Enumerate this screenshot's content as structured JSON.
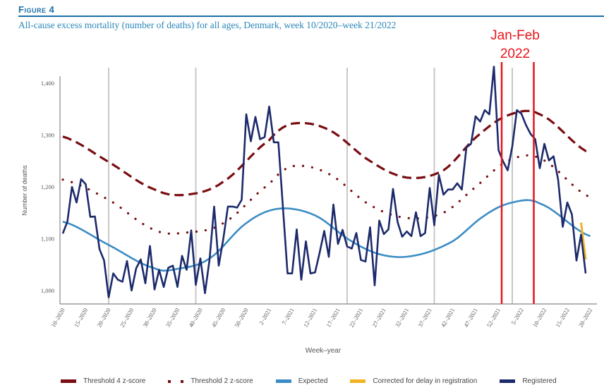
{
  "figure": {
    "label": "Figure 4",
    "title": "All-cause excess mortality (number of deaths) for all ages, Denmark, week 10/2020–week 21/2022",
    "annotation": {
      "line1": "Jan-Feb",
      "line2": "2022",
      "color": "#e8141b",
      "x_start_week_index": 96,
      "x_end_week_index": 103
    }
  },
  "colors": {
    "threshold4": "#7a0d12",
    "threshold2": "#7a0d12",
    "expected": "#3b8cc4",
    "corrected": "#f0b323",
    "registered": "#1c2a6b",
    "year_lines": "#c8c8c8",
    "title": "#2a86b8",
    "label": "#1b6fa8"
  },
  "chart_data": {
    "type": "line",
    "title": "All-cause excess mortality (number of deaths) for all ages, Denmark, week 10/2020–week 21/2022",
    "xlabel": "Week–year",
    "ylabel": "Number of deaths",
    "ylim": [
      975,
      1420
    ],
    "yticks": [
      1000,
      1100,
      1200,
      1300,
      1400
    ],
    "ytick_labels": [
      "1,000",
      "1,100",
      "1,200",
      "1,300",
      "1,400"
    ],
    "x_tick_labels": [
      "10–2020",
      "15–2020",
      "20–2020",
      "25–2020",
      "30–2020",
      "35–2020",
      "40–2020",
      "45–2020",
      "50–2020",
      "2–2021",
      "7–2021",
      "12–2021",
      "17–2021",
      "22–2021",
      "27–2021",
      "32–2021",
      "37–2021",
      "42–2021",
      "47–2021",
      "52–2021",
      "5–2022",
      "10–2022",
      "15–2022",
      "20–2022"
    ],
    "x_tick_step_weeks": 5,
    "n_weeks": 116,
    "year_separator_week_indices": [
      10,
      29,
      62,
      81,
      98
    ],
    "grid": false,
    "legend_position": "bottom",
    "series": [
      {
        "name": "Threshold 4 z-score",
        "style": "dashed",
        "control_weeks": [
          0,
          10,
          20,
          27,
          35,
          45,
          50,
          58,
          67,
          75,
          83,
          90,
          97,
          104,
          115
        ],
        "values": [
          1297,
          1248,
          1195,
          1185,
          1210,
          1290,
          1322,
          1310,
          1250,
          1218,
          1232,
          1295,
          1338,
          1340,
          1265
        ]
      },
      {
        "name": "Threshold 2 z-score",
        "style": "dotted",
        "control_weeks": [
          0,
          10,
          20,
          27,
          35,
          45,
          50,
          58,
          67,
          75,
          83,
          90,
          97,
          104,
          115
        ],
        "values": [
          1214,
          1175,
          1117,
          1112,
          1130,
          1205,
          1240,
          1225,
          1165,
          1140,
          1150,
          1200,
          1250,
          1255,
          1180
        ]
      },
      {
        "name": "Expected",
        "style": "solid",
        "control_weeks": [
          0,
          10,
          20,
          25,
          32,
          40,
          47,
          55,
          63,
          70,
          77,
          85,
          92,
          98,
          104,
          115
        ],
        "values": [
          1133,
          1088,
          1043,
          1042,
          1062,
          1130,
          1158,
          1145,
          1095,
          1068,
          1068,
          1095,
          1145,
          1170,
          1168,
          1105
        ]
      },
      {
        "name": "Corrected for delay in registration",
        "style": "solid",
        "start_week_index": 113,
        "values": [
          1131,
          1060
        ]
      },
      {
        "name": "Registered",
        "style": "solid",
        "values": [
          1110,
          1133,
          1200,
          1170,
          1215,
          1205,
          1142,
          1143,
          1080,
          1058,
          987,
          1033,
          1021,
          1017,
          1057,
          1000,
          1043,
          1060,
          1014,
          1086,
          1002,
          1040,
          1007,
          1044,
          1048,
          1007,
          1067,
          1040,
          1116,
          1011,
          1062,
          995,
          1060,
          1162,
          1048,
          1100,
          1162,
          1162,
          1160,
          1175,
          1340,
          1288,
          1335,
          1292,
          1296,
          1355,
          1286,
          1286,
          1160,
          1033,
          1033,
          1118,
          1021,
          1095,
          1033,
          1035,
          1073,
          1115,
          1065,
          1166,
          1090,
          1117,
          1085,
          1081,
          1111,
          1059,
          1056,
          1122,
          1010,
          1135,
          1109,
          1118,
          1196,
          1132,
          1104,
          1114,
          1105,
          1151,
          1105,
          1111,
          1198,
          1126,
          1223,
          1185,
          1195,
          1195,
          1207,
          1195,
          1276,
          1283,
          1336,
          1326,
          1348,
          1340,
          1432,
          1271,
          1249,
          1232,
          1278,
          1348,
          1341,
          1319,
          1302,
          1292,
          1236,
          1283,
          1251,
          1259,
          1214,
          1123,
          1170,
          1147,
          1058,
          1108,
          1033
        ]
      }
    ]
  },
  "legend": [
    {
      "label": "Threshold 4 z-score",
      "type": "dash"
    },
    {
      "label": "Threshold 2 z-score",
      "type": "dots"
    },
    {
      "label": "Expected",
      "type": "solid"
    },
    {
      "label": "Corrected for delay in registration",
      "type": "solid"
    },
    {
      "label": "Registered",
      "type": "solid"
    }
  ]
}
